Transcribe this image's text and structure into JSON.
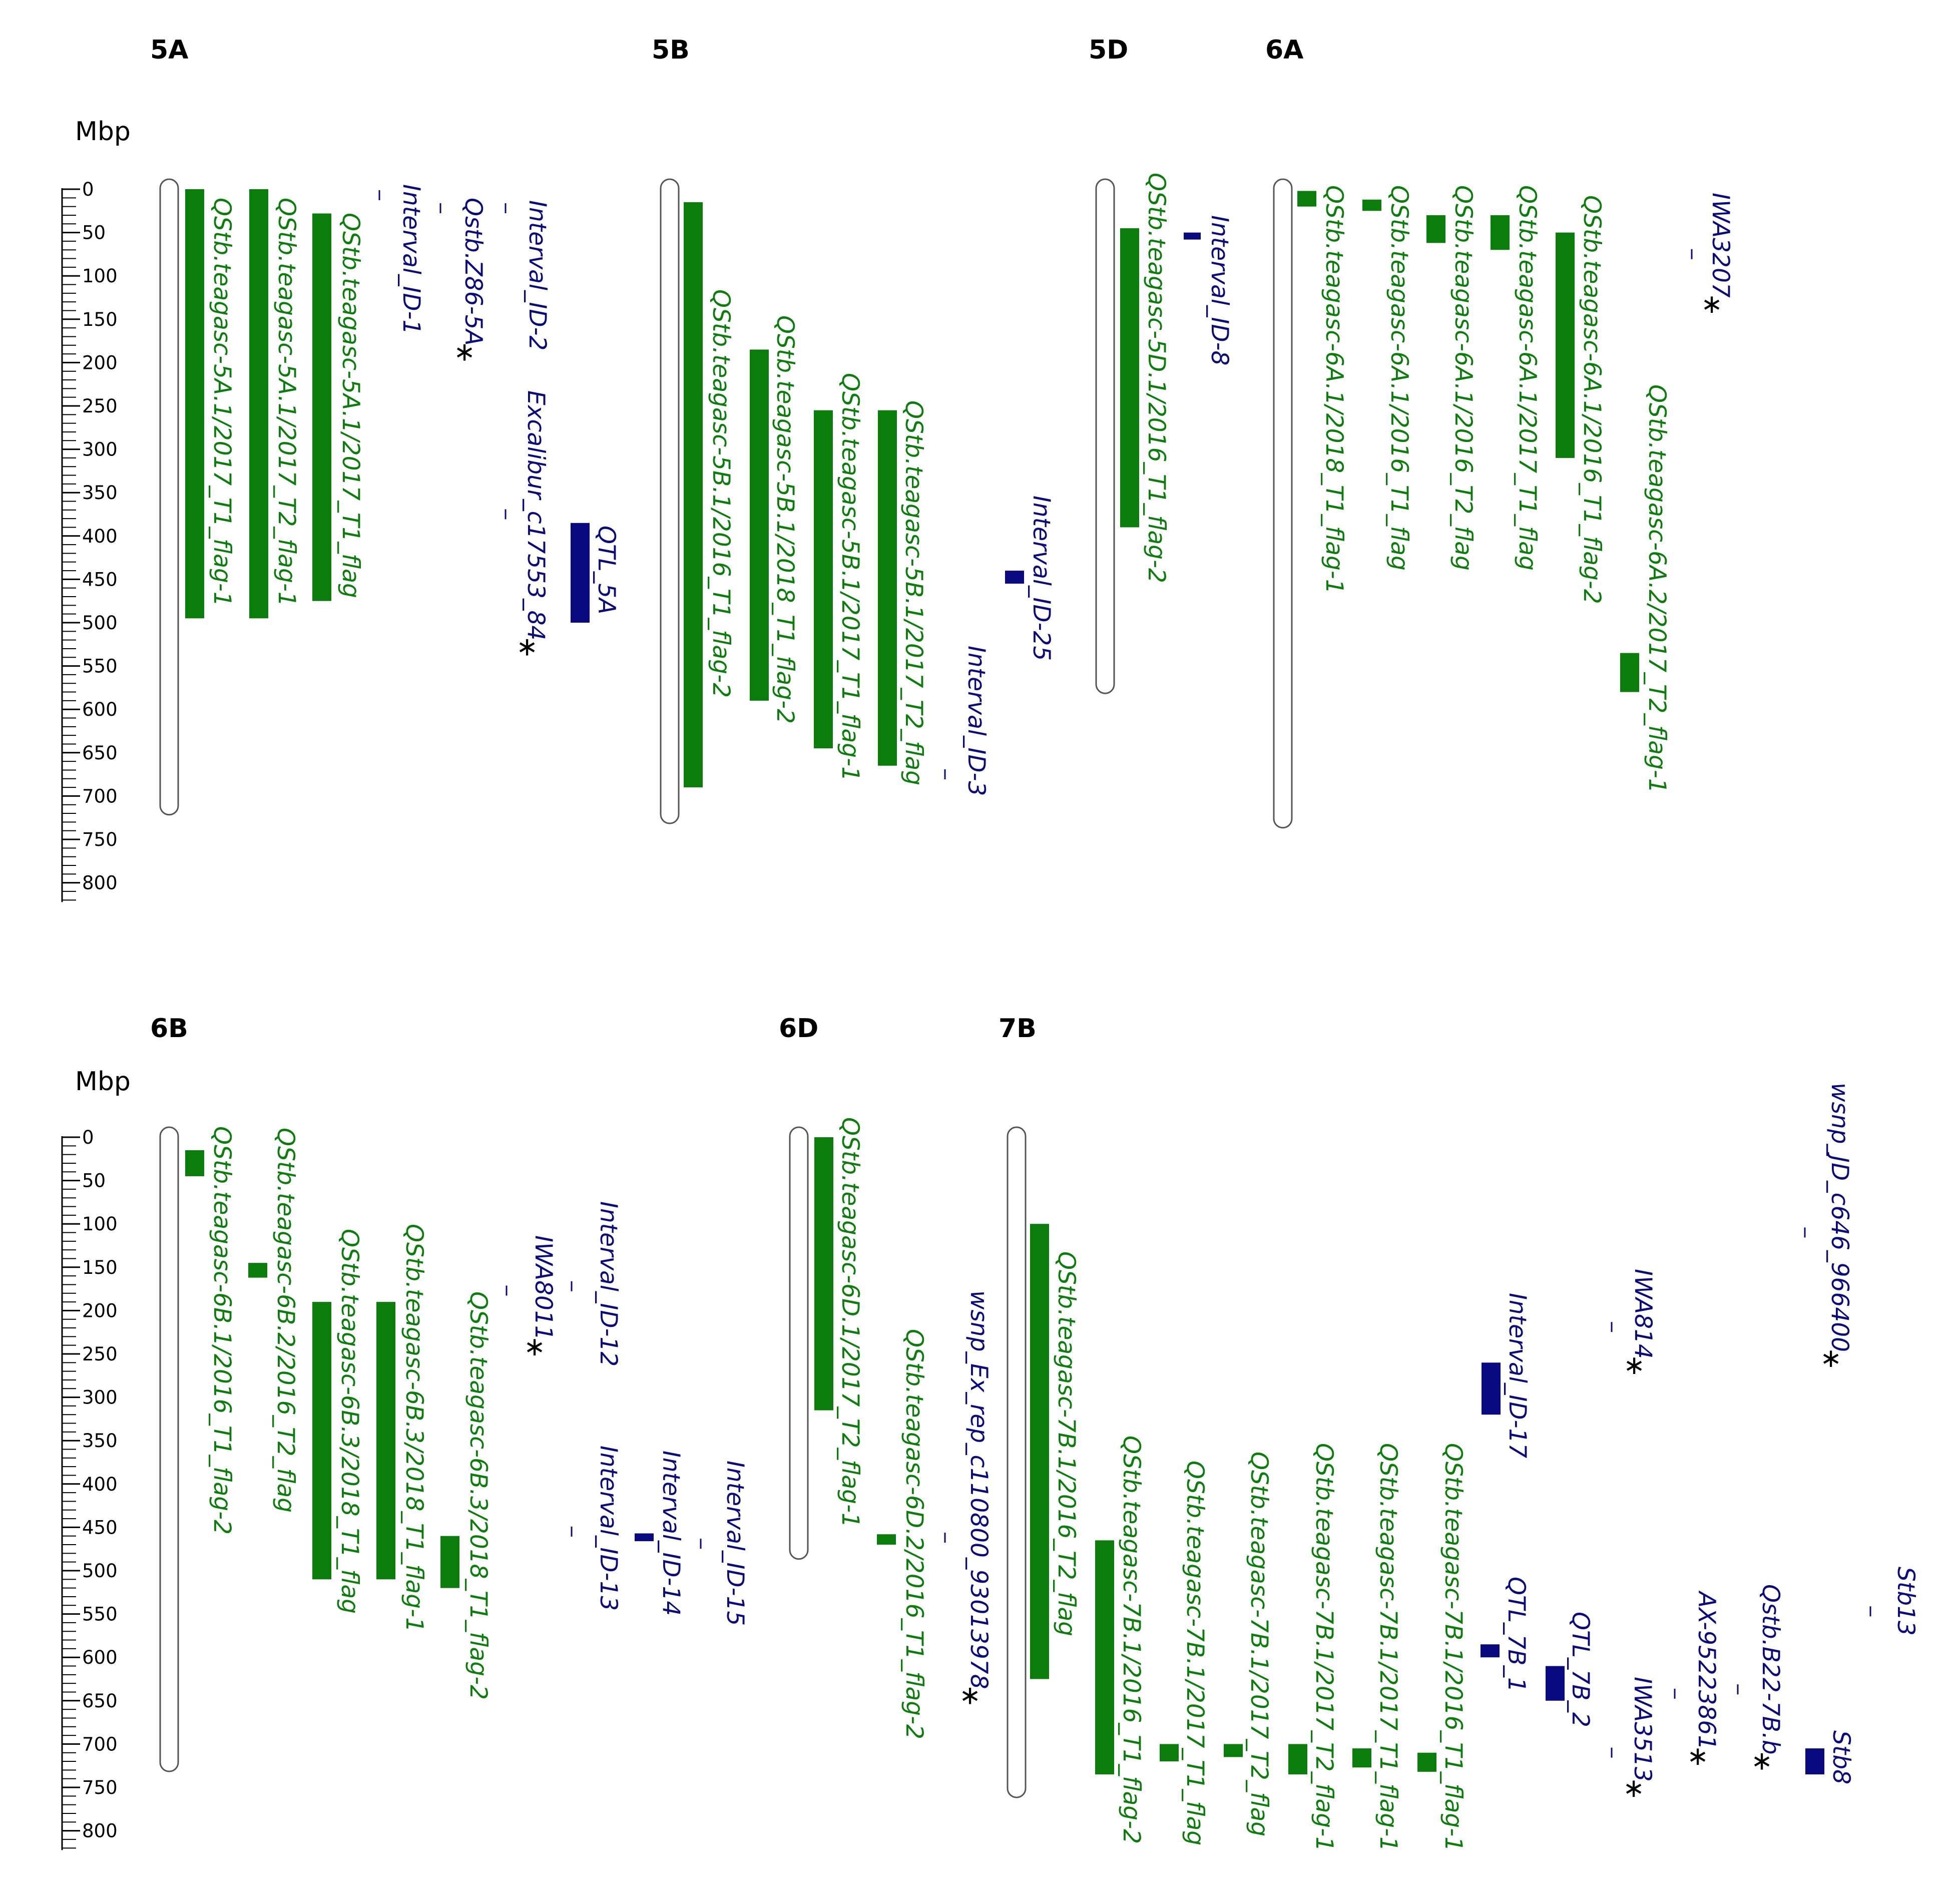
{
  "axis_unit": "Mbp",
  "axis_ticks": [
    "0",
    "50",
    "100",
    "150",
    "200",
    "250",
    "300",
    "350",
    "400",
    "450",
    "500",
    "550",
    "600",
    "650",
    "700",
    "750",
    "800"
  ],
  "colors": {
    "qtl": "#0a7d0a",
    "marker": "#0a0a80",
    "chromosome_outline": "#555555",
    "asterisk": "#000000"
  },
  "rows": [
    {
      "chromosomes": [
        {
          "name": "5A",
          "length_mbp": 710
        },
        {
          "name": "5B",
          "length_mbp": 720
        },
        {
          "name": "5D",
          "length_mbp": 570
        },
        {
          "name": "6A",
          "length_mbp": 725
        }
      ],
      "features": [
        {
          "label": "QStb.teagasc-5A.1/2017_T1_flag-1",
          "chrom": "5A",
          "type": "qtl",
          "start": 0,
          "end": 495
        },
        {
          "label": "QStb.teagasc-5A.1/2017_T2_flag-1",
          "chrom": "5A",
          "type": "qtl",
          "start": 0,
          "end": 495
        },
        {
          "label": "QStb.teagasc-5A.1/2017_T1_flag",
          "chrom": "5A",
          "type": "qtl",
          "start": 28,
          "end": 475
        },
        {
          "label": "Interval_ID-1",
          "chrom": "5A",
          "type": "marker",
          "start": 0,
          "end": 3,
          "star": false
        },
        {
          "label": "Qstb.Z86-5A",
          "chrom": "5A",
          "type": "marker",
          "start": 15,
          "end": 18,
          "star": true
        },
        {
          "label": "Interval_ID-2",
          "chrom": "5A",
          "type": "marker",
          "start": 15,
          "end": 18,
          "star": false
        },
        {
          "label": "Excalibur_c17553_84",
          "chrom": "5A",
          "type": "marker",
          "start": 368,
          "end": 371,
          "star": true
        },
        {
          "label": "QTL_5A",
          "chrom": "5A",
          "type": "interval",
          "start": 385,
          "end": 500,
          "star": false
        },
        {
          "label": "QStb.teagasc-5B.1/2016_T1_flag-2",
          "chrom": "5B",
          "type": "qtl",
          "start": 15,
          "end": 690
        },
        {
          "label": "QStb.teagasc-5B.1/2018_T1_flag-2",
          "chrom": "5B",
          "type": "qtl",
          "start": 185,
          "end": 590
        },
        {
          "label": "QStb.teagasc-5B.1/2017_T1_flag-1",
          "chrom": "5B",
          "type": "qtl",
          "start": 255,
          "end": 645
        },
        {
          "label": "QStb.teagasc-5B.1/2017_T2_flag",
          "chrom": "5B",
          "type": "qtl",
          "start": 255,
          "end": 665
        },
        {
          "label": "Interval_ID-25",
          "chrom": "5B",
          "type": "interval",
          "start": 440,
          "end": 455,
          "star": false
        },
        {
          "label": "Interval_ID-3",
          "chrom": "5B",
          "type": "marker",
          "start": 668,
          "end": 671,
          "star": false
        },
        {
          "label": "QStb.teagasc-5D.1/2016_T1_flag-2",
          "chrom": "5D",
          "type": "qtl",
          "start": 45,
          "end": 390
        },
        {
          "label": "Interval_ID-8",
          "chrom": "5D",
          "type": "interval",
          "start": 50,
          "end": 58,
          "star": false
        },
        {
          "label": "QStb.teagasc-6A.1/2018_T1_flag-1",
          "chrom": "6A",
          "type": "qtl",
          "start": 2,
          "end": 20
        },
        {
          "label": "QStb.teagasc-6A.1/2016_T1_flag",
          "chrom": "6A",
          "type": "qtl",
          "start": 12,
          "end": 25
        },
        {
          "label": "QStb.teagasc-6A.1/2016_T2_flag",
          "chrom": "6A",
          "type": "qtl",
          "start": 30,
          "end": 62
        },
        {
          "label": "QStb.teagasc-6A.1/2017_T1_flag",
          "chrom": "6A",
          "type": "qtl",
          "start": 30,
          "end": 70
        },
        {
          "label": "QStb.teagasc-6A.1/2016_T1_flag-2",
          "chrom": "6A",
          "type": "qtl",
          "start": 50,
          "end": 310
        },
        {
          "label": "QStb.teagasc-6A.2/2017_T2_flag-1",
          "chrom": "6A",
          "type": "qtl",
          "start": 535,
          "end": 580
        },
        {
          "label": "IWA3207",
          "chrom": "6A",
          "type": "marker",
          "start": 68,
          "end": 71,
          "star": true
        }
      ]
    },
    {
      "chromosomes": [
        {
          "name": "6B",
          "length_mbp": 720
        },
        {
          "name": "6D",
          "length_mbp": 475
        },
        {
          "name": "7B",
          "length_mbp": 750
        }
      ],
      "features": [
        {
          "label": "QStb.teagasc-6B.1/2016_T1_flag-2",
          "chrom": "6B",
          "type": "qtl",
          "start": 15,
          "end": 45
        },
        {
          "label": "QStb.teagasc-6B.2/2016_T2_flag",
          "chrom": "6B",
          "type": "qtl",
          "start": 145,
          "end": 162
        },
        {
          "label": "QStb.teagasc-6B.3/2018_T1_flag",
          "chrom": "6B",
          "type": "qtl",
          "start": 190,
          "end": 510
        },
        {
          "label": "QStb.teagasc-6B.3/2018_T1_flag-1",
          "chrom": "6B",
          "type": "qtl",
          "start": 190,
          "end": 510
        },
        {
          "label": "QStb.teagasc-6B.3/2018_T1_flag-2",
          "chrom": "6B",
          "type": "qtl",
          "start": 460,
          "end": 520
        },
        {
          "label": "IWA8011",
          "chrom": "6B",
          "type": "marker",
          "start": 170,
          "end": 173,
          "star": true
        },
        {
          "label": "Interval_ID-12",
          "chrom": "6B",
          "type": "marker",
          "start": 165,
          "end": 168,
          "star": false
        },
        {
          "label": "Interval_ID-13",
          "chrom": "6B",
          "type": "marker",
          "start": 448,
          "end": 451,
          "star": false
        },
        {
          "label": "Interval_ID-14",
          "chrom": "6B",
          "type": "interval",
          "start": 457,
          "end": 466,
          "star": false
        },
        {
          "label": "Interval_ID-15",
          "chrom": "6B",
          "type": "marker",
          "start": 462,
          "end": 465,
          "star": false
        },
        {
          "label": "QStb.teagasc-6D.1/2017_T2_flag-1",
          "chrom": "6D",
          "type": "qtl",
          "start": 0,
          "end": 315
        },
        {
          "label": "QStb.teagasc-6D.2/2016_T1_flag-2",
          "chrom": "6D",
          "type": "qtl",
          "start": 458,
          "end": 470
        },
        {
          "label": "wsnp_Ex_rep_c110800_93013978",
          "chrom": "6D",
          "type": "marker",
          "start": 455,
          "end": 458,
          "star": true
        },
        {
          "label": "QStb.teagasc-7B.1/2016_T2_flag",
          "chrom": "7B",
          "type": "qtl",
          "start": 100,
          "end": 625
        },
        {
          "label": "QStb.teagasc-7B.1/2016_T1_flag-2",
          "chrom": "7B",
          "type": "qtl",
          "start": 465,
          "end": 735
        },
        {
          "label": "QStb.teagasc-7B.1/2017_T1_flag",
          "chrom": "7B",
          "type": "qtl",
          "start": 700,
          "end": 720
        },
        {
          "label": "QStb.teagasc-7B.1/2017_T2_flag",
          "chrom": "7B",
          "type": "qtl",
          "start": 700,
          "end": 715
        },
        {
          "label": "QStb.teagasc-7B.1/2017_T2_flag-1",
          "chrom": "7B",
          "type": "qtl",
          "start": 700,
          "end": 735
        },
        {
          "label": "QStb.teagasc-7B.1/2017_T1_flag-1",
          "chrom": "7B",
          "type": "qtl",
          "start": 705,
          "end": 727
        },
        {
          "label": "QStb.teagasc-7B.1/2016_T1_flag-1",
          "chrom": "7B",
          "type": "qtl",
          "start": 710,
          "end": 732
        },
        {
          "label": "Interval_ID-17",
          "chrom": "7B",
          "type": "interval",
          "start": 260,
          "end": 320,
          "star": false
        },
        {
          "label": "QTL_7B_1",
          "chrom": "7B",
          "type": "interval",
          "start": 585,
          "end": 600,
          "star": false
        },
        {
          "label": "QTL_7B_2",
          "chrom": "7B",
          "type": "interval",
          "start": 610,
          "end": 650,
          "star": false
        },
        {
          "label": "IWA814",
          "chrom": "7B",
          "type": "marker",
          "start": 212,
          "end": 215,
          "star": true
        },
        {
          "label": "IWA3513",
          "chrom": "7B",
          "type": "marker",
          "start": 703,
          "end": 706,
          "star": true
        },
        {
          "label": "AX-95223861",
          "chrom": "7B",
          "type": "marker",
          "start": 635,
          "end": 638,
          "star": true
        },
        {
          "label": "Qstb.B22-7B.b",
          "chrom": "7B",
          "type": "marker",
          "start": 630,
          "end": 633,
          "star": true
        },
        {
          "label": "Stb8",
          "chrom": "7B",
          "type": "interval",
          "start": 705,
          "end": 735,
          "star": false
        },
        {
          "label": "Stb13",
          "chrom": "7B",
          "type": "marker",
          "start": 540,
          "end": 543,
          "star": false
        },
        {
          "label": "wsnp_JD_c646_966400",
          "chrom": "7B",
          "type": "marker",
          "start": 103,
          "end": 106,
          "star": true
        }
      ]
    }
  ]
}
